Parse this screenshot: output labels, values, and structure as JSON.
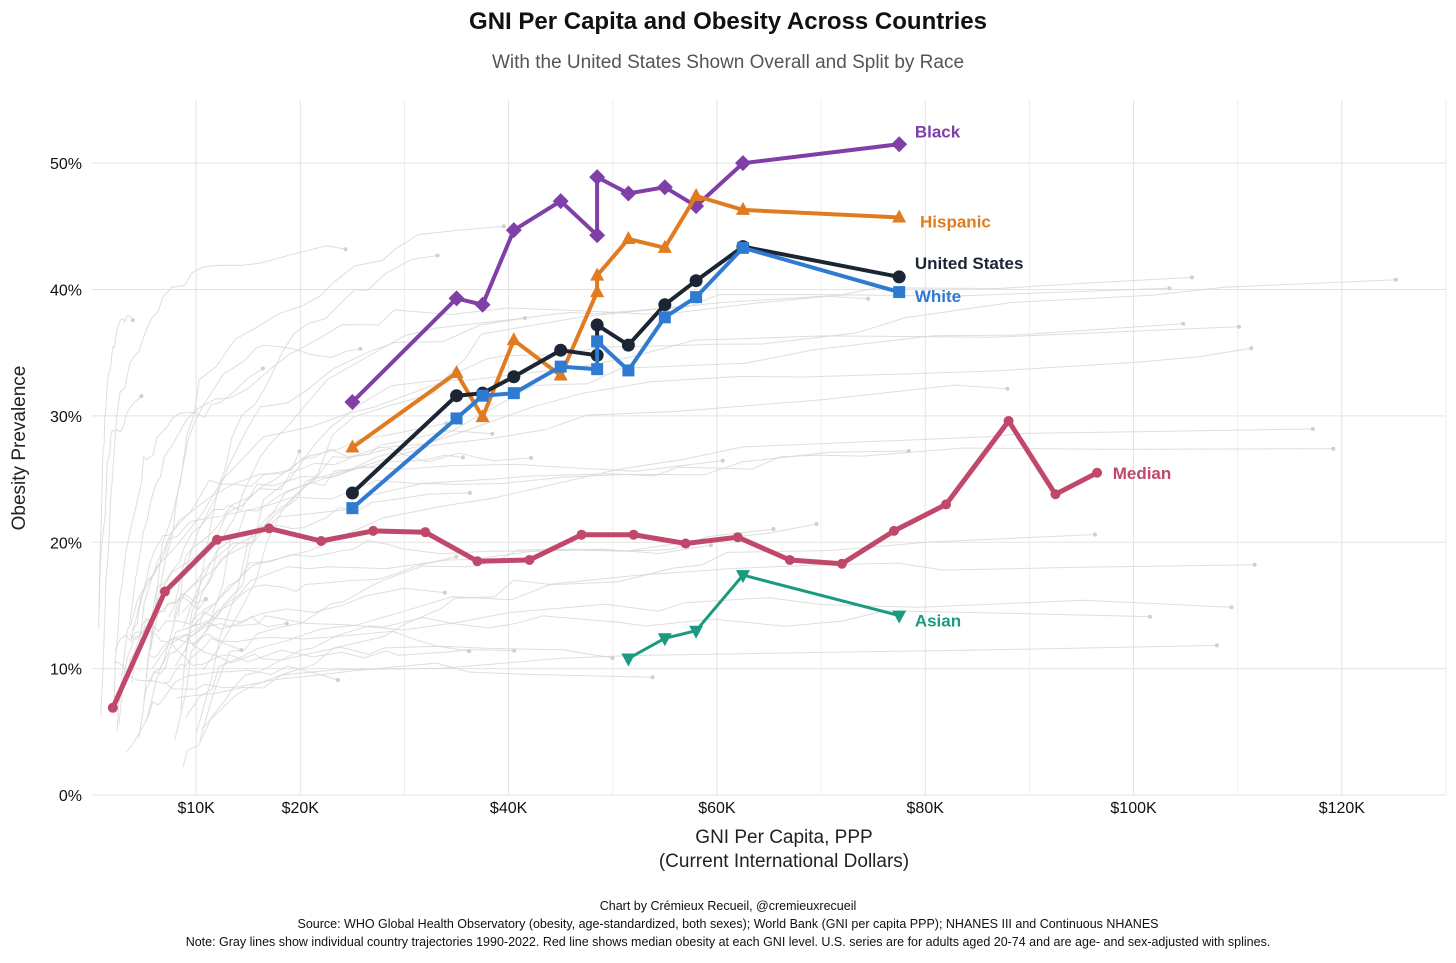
{
  "chart_data": {
    "type": "line",
    "title": "GNI Per Capita and Obesity Across Countries",
    "subtitle": "With the United States Shown Overall and Split by Race",
    "xlabel_line1": "GNI Per Capita, PPP",
    "xlabel_line2": "(Current International Dollars)",
    "ylabel": "Obesity Prevalence",
    "xlim": [
      0,
      130000
    ],
    "ylim": [
      0,
      55
    ],
    "x_ticks": [
      {
        "value": 10000,
        "label": "$10K"
      },
      {
        "value": 20000,
        "label": "$20K"
      },
      {
        "value": 40000,
        "label": "$40K"
      },
      {
        "value": 60000,
        "label": "$60K"
      },
      {
        "value": 80000,
        "label": "$80K"
      },
      {
        "value": 100000,
        "label": "$100K"
      },
      {
        "value": 120000,
        "label": "$120K"
      }
    ],
    "y_ticks": [
      {
        "value": 0,
        "label": "0%"
      },
      {
        "value": 10,
        "label": "10%"
      },
      {
        "value": 20,
        "label": "20%"
      },
      {
        "value": 30,
        "label": "30%"
      },
      {
        "value": 40,
        "label": "40%"
      },
      {
        "value": 50,
        "label": "50%"
      }
    ],
    "grid": true,
    "series": [
      {
        "name": "Median",
        "color": "#c0486a",
        "marker": "circle",
        "width": 5,
        "x": [
          2000,
          7000,
          12000,
          17000,
          22000,
          27000,
          32000,
          37000,
          42000,
          47000,
          52000,
          57000,
          62000,
          67000,
          72000,
          77000,
          82000,
          88000,
          92500,
          96500
        ],
        "y": [
          6.9,
          16.1,
          20.2,
          21.1,
          20.1,
          20.9,
          20.8,
          18.5,
          18.6,
          20.6,
          20.6,
          19.9,
          20.4,
          18.6,
          18.3,
          20.9,
          23.0,
          29.6,
          23.8,
          25.5
        ]
      },
      {
        "name": "Black",
        "color": "#7f3fa7",
        "marker": "diamond",
        "width": 4,
        "x": [
          25000,
          35000,
          37500,
          40500,
          45000,
          48500,
          48500,
          51500,
          55000,
          58000,
          62500,
          77500
        ],
        "y": [
          31.1,
          39.3,
          38.8,
          44.7,
          47.0,
          44.3,
          48.9,
          47.6,
          48.1,
          46.6,
          50.0,
          51.5
        ]
      },
      {
        "name": "Hispanic",
        "color": "#e07b20",
        "marker": "triangle-up",
        "width": 4,
        "x": [
          25000,
          35000,
          37500,
          40500,
          45000,
          48500,
          48500,
          51500,
          55000,
          58000,
          62500,
          77500
        ],
        "y": [
          27.5,
          33.4,
          29.9,
          36.0,
          33.2,
          39.8,
          41.1,
          44.0,
          43.3,
          47.4,
          46.3,
          45.7
        ]
      },
      {
        "name": "United States",
        "color": "#1b2533",
        "marker": "circle",
        "width": 4,
        "x": [
          25000,
          35000,
          37500,
          40500,
          45000,
          48500,
          48500,
          51500,
          55000,
          58000,
          62500,
          77500
        ],
        "y": [
          23.9,
          31.6,
          31.8,
          33.1,
          35.2,
          34.8,
          37.2,
          35.6,
          38.8,
          40.7,
          43.4,
          41.0
        ]
      },
      {
        "name": "White",
        "color": "#2f7bd1",
        "marker": "square",
        "width": 4,
        "x": [
          25000,
          35000,
          37500,
          40500,
          45000,
          48500,
          48500,
          51500,
          55000,
          58000,
          62500,
          77500
        ],
        "y": [
          22.7,
          29.8,
          31.6,
          31.8,
          33.9,
          33.7,
          35.9,
          33.6,
          37.8,
          39.4,
          43.3,
          39.8
        ]
      },
      {
        "name": "Asian",
        "color": "#1a9a7f",
        "marker": "triangle-down",
        "width": 3,
        "x": [
          51500,
          55000,
          58000,
          62500,
          77500
        ],
        "y": [
          10.8,
          12.4,
          13.0,
          17.4,
          14.2
        ]
      }
    ],
    "labels": [
      {
        "series": "Black",
        "text": "Black",
        "x": 79000,
        "y": 52.5,
        "color": "#7f3fa7"
      },
      {
        "series": "Hispanic",
        "text": "Hispanic",
        "x": 79500,
        "y": 45.4,
        "color": "#e07b20"
      },
      {
        "series": "United States",
        "text": "United States",
        "x": 79000,
        "y": 42.1,
        "color": "#1b2533"
      },
      {
        "series": "White",
        "text": "White",
        "x": 79000,
        "y": 39.5,
        "color": "#2f7bd1"
      },
      {
        "series": "Median",
        "text": "Median",
        "x": 98000,
        "y": 25.5,
        "color": "#c0486a"
      },
      {
        "series": "Asian",
        "text": "Asian",
        "x": 79000,
        "y": 13.8,
        "color": "#1a9a7f"
      }
    ],
    "background_country_lines": {
      "color": "#d6d6d6",
      "count": 45
    }
  },
  "notes": {
    "credit": "Chart by Crémieux Recueil, @cremieuxrecueil",
    "source": "Source: WHO Global Health Observatory (obesity, age-standardized, both sexes); World Bank (GNI per capita PPP); NHANES III and Continuous NHANES",
    "note": "Note: Gray lines show individual country trajectories 1990-2022. Red line shows median obesity at each GNI level. U.S. series are for adults aged 20-74 and are age- and sex-adjusted with splines."
  }
}
